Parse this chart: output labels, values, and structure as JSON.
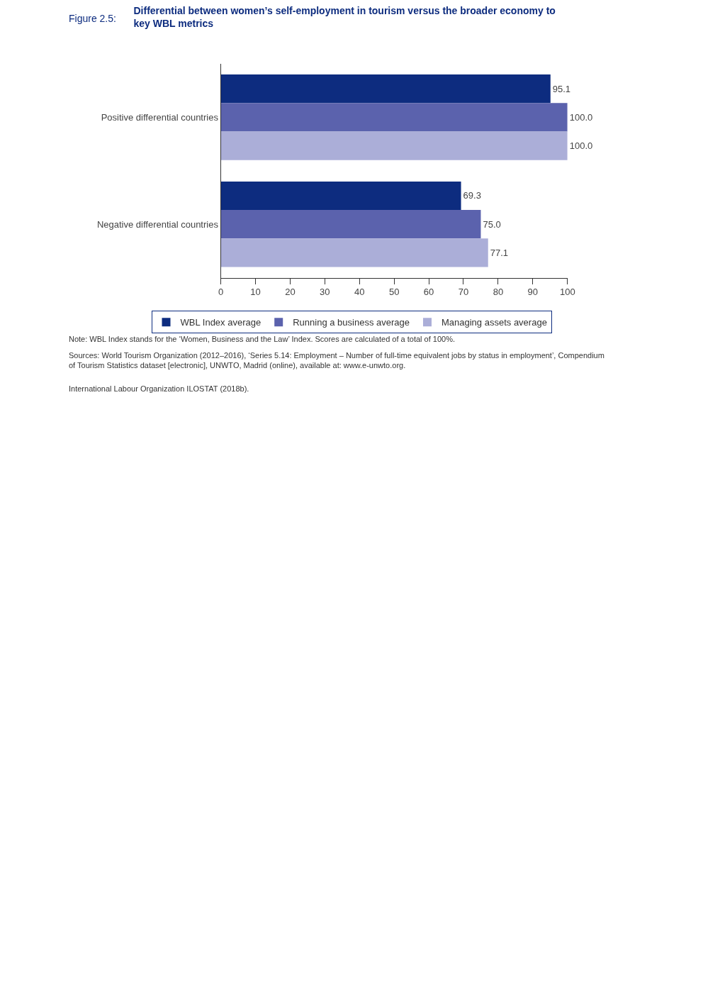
{
  "chart_data": {
    "type": "bar",
    "orientation": "horizontal",
    "title": "Differential between women’s self-employment in tourism versus the broader economy to key WBL metrics",
    "categories": [
      "Positive differential countries",
      "Negative differential countries"
    ],
    "series": [
      {
        "name": "WBL Index average",
        "color": "#0d2c7f",
        "values": [
          95.1,
          69.3
        ],
        "value_labels": [
          "95.1",
          "69.3"
        ]
      },
      {
        "name": "Running a business average",
        "color": "#5b62ad",
        "values": [
          100.0,
          75.0
        ],
        "value_labels": [
          "100.0",
          "75.0"
        ]
      },
      {
        "name": "Managing assets average",
        "color": "#abaed8",
        "values": [
          100.0,
          77.1
        ],
        "value_labels": [
          "100.0",
          "77.1"
        ]
      }
    ],
    "xlim": [
      0,
      100
    ],
    "xticks": [
      0,
      10,
      20,
      30,
      40,
      50,
      60,
      70,
      80,
      90,
      100
    ],
    "legend": "bottom",
    "annotations": [
      "Figure 2.5:",
      "Note: WBL Index stands for the ‘Women, Business and the Law’ Index. Scores are calculated of a total of 100%.",
      "Sources: World Tourism Organization (2012–2016), ‘Series 5.14: Employment – Number of full-time equivalent jobs by status in employment’, Compendium of Tourism Statistics dataset [electronic], UNWTO, Madrid (online), available at: www.e-unwto.org.",
      "International Labour Organization ILOSTAT (2018b)."
    ]
  }
}
